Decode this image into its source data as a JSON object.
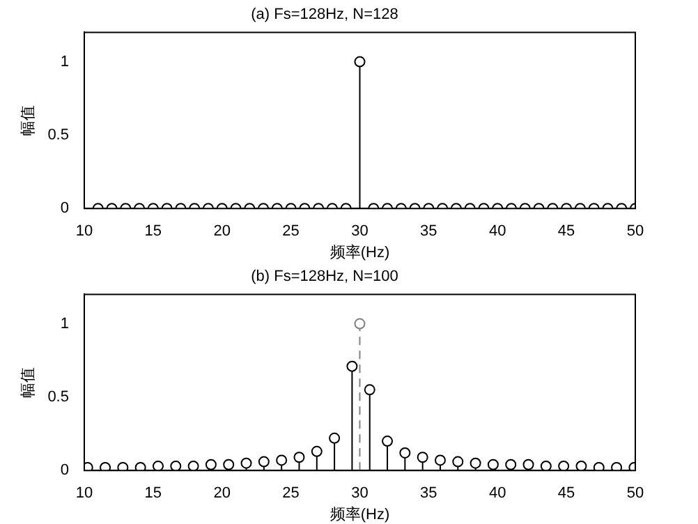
{
  "chart_data": [
    {
      "type": "lollipop",
      "title": "(a) Fs=128Hz, N=128",
      "xlabel": "频率(Hz)",
      "ylabel": "幅值",
      "marker": "circle",
      "xlim": [
        10,
        50
      ],
      "xticks": [
        10,
        15,
        20,
        25,
        30,
        35,
        40,
        45,
        50
      ],
      "ylim": [
        0,
        1.2
      ],
      "yticks": [
        0,
        0.5,
        1
      ],
      "legend": false,
      "series": [
        {
          "color": "#000000",
          "x": [
            11,
            12,
            13,
            14,
            15,
            16,
            17,
            18,
            19,
            20,
            21,
            22,
            23,
            24,
            25,
            26,
            27,
            28,
            29,
            30,
            31,
            32,
            33,
            34,
            35,
            36,
            37,
            38,
            39,
            40,
            41,
            42,
            43,
            44,
            45,
            46,
            47,
            48,
            49,
            50
          ],
          "values": [
            0,
            0,
            0,
            0,
            0,
            0,
            0,
            0,
            0,
            0,
            0,
            0,
            0,
            0,
            0,
            0,
            0,
            0,
            0,
            1,
            0,
            0,
            0,
            0,
            0,
            0,
            0,
            0,
            0,
            0,
            0,
            0,
            0,
            0,
            0,
            0,
            0,
            0,
            0,
            0
          ]
        }
      ]
    },
    {
      "type": "lollipop",
      "title": "(b) Fs=128Hz, N=100",
      "xlabel": "频率(Hz)",
      "ylabel": "幅值",
      "marker": "circle",
      "xlim": [
        10,
        50
      ],
      "xticks": [
        10,
        15,
        20,
        25,
        30,
        35,
        40,
        45,
        50
      ],
      "ylim": [
        0,
        1.2
      ],
      "yticks": [
        0,
        0.5,
        1
      ],
      "legend": false,
      "series": [
        {
          "color": "#000000",
          "x": [
            10.24,
            11.52,
            12.8,
            14.08,
            15.36,
            16.64,
            17.92,
            19.2,
            20.48,
            21.76,
            23.04,
            24.32,
            25.6,
            26.88,
            28.16,
            29.44,
            30.72,
            32.0,
            33.28,
            34.56,
            35.84,
            37.12,
            38.4,
            39.68,
            40.96,
            42.24,
            43.52,
            44.8,
            46.08,
            47.36,
            48.64,
            49.92
          ],
          "values": [
            0.02,
            0.02,
            0.02,
            0.02,
            0.03,
            0.03,
            0.03,
            0.04,
            0.04,
            0.05,
            0.06,
            0.07,
            0.09,
            0.13,
            0.22,
            0.71,
            0.55,
            0.2,
            0.12,
            0.09,
            0.07,
            0.06,
            0.05,
            0.04,
            0.04,
            0.04,
            0.03,
            0.03,
            0.03,
            0.02,
            0.02,
            0.02
          ]
        },
        {
          "color": "#808080",
          "line_style": "dashed",
          "x": [
            30
          ],
          "values": [
            1
          ]
        }
      ]
    }
  ]
}
